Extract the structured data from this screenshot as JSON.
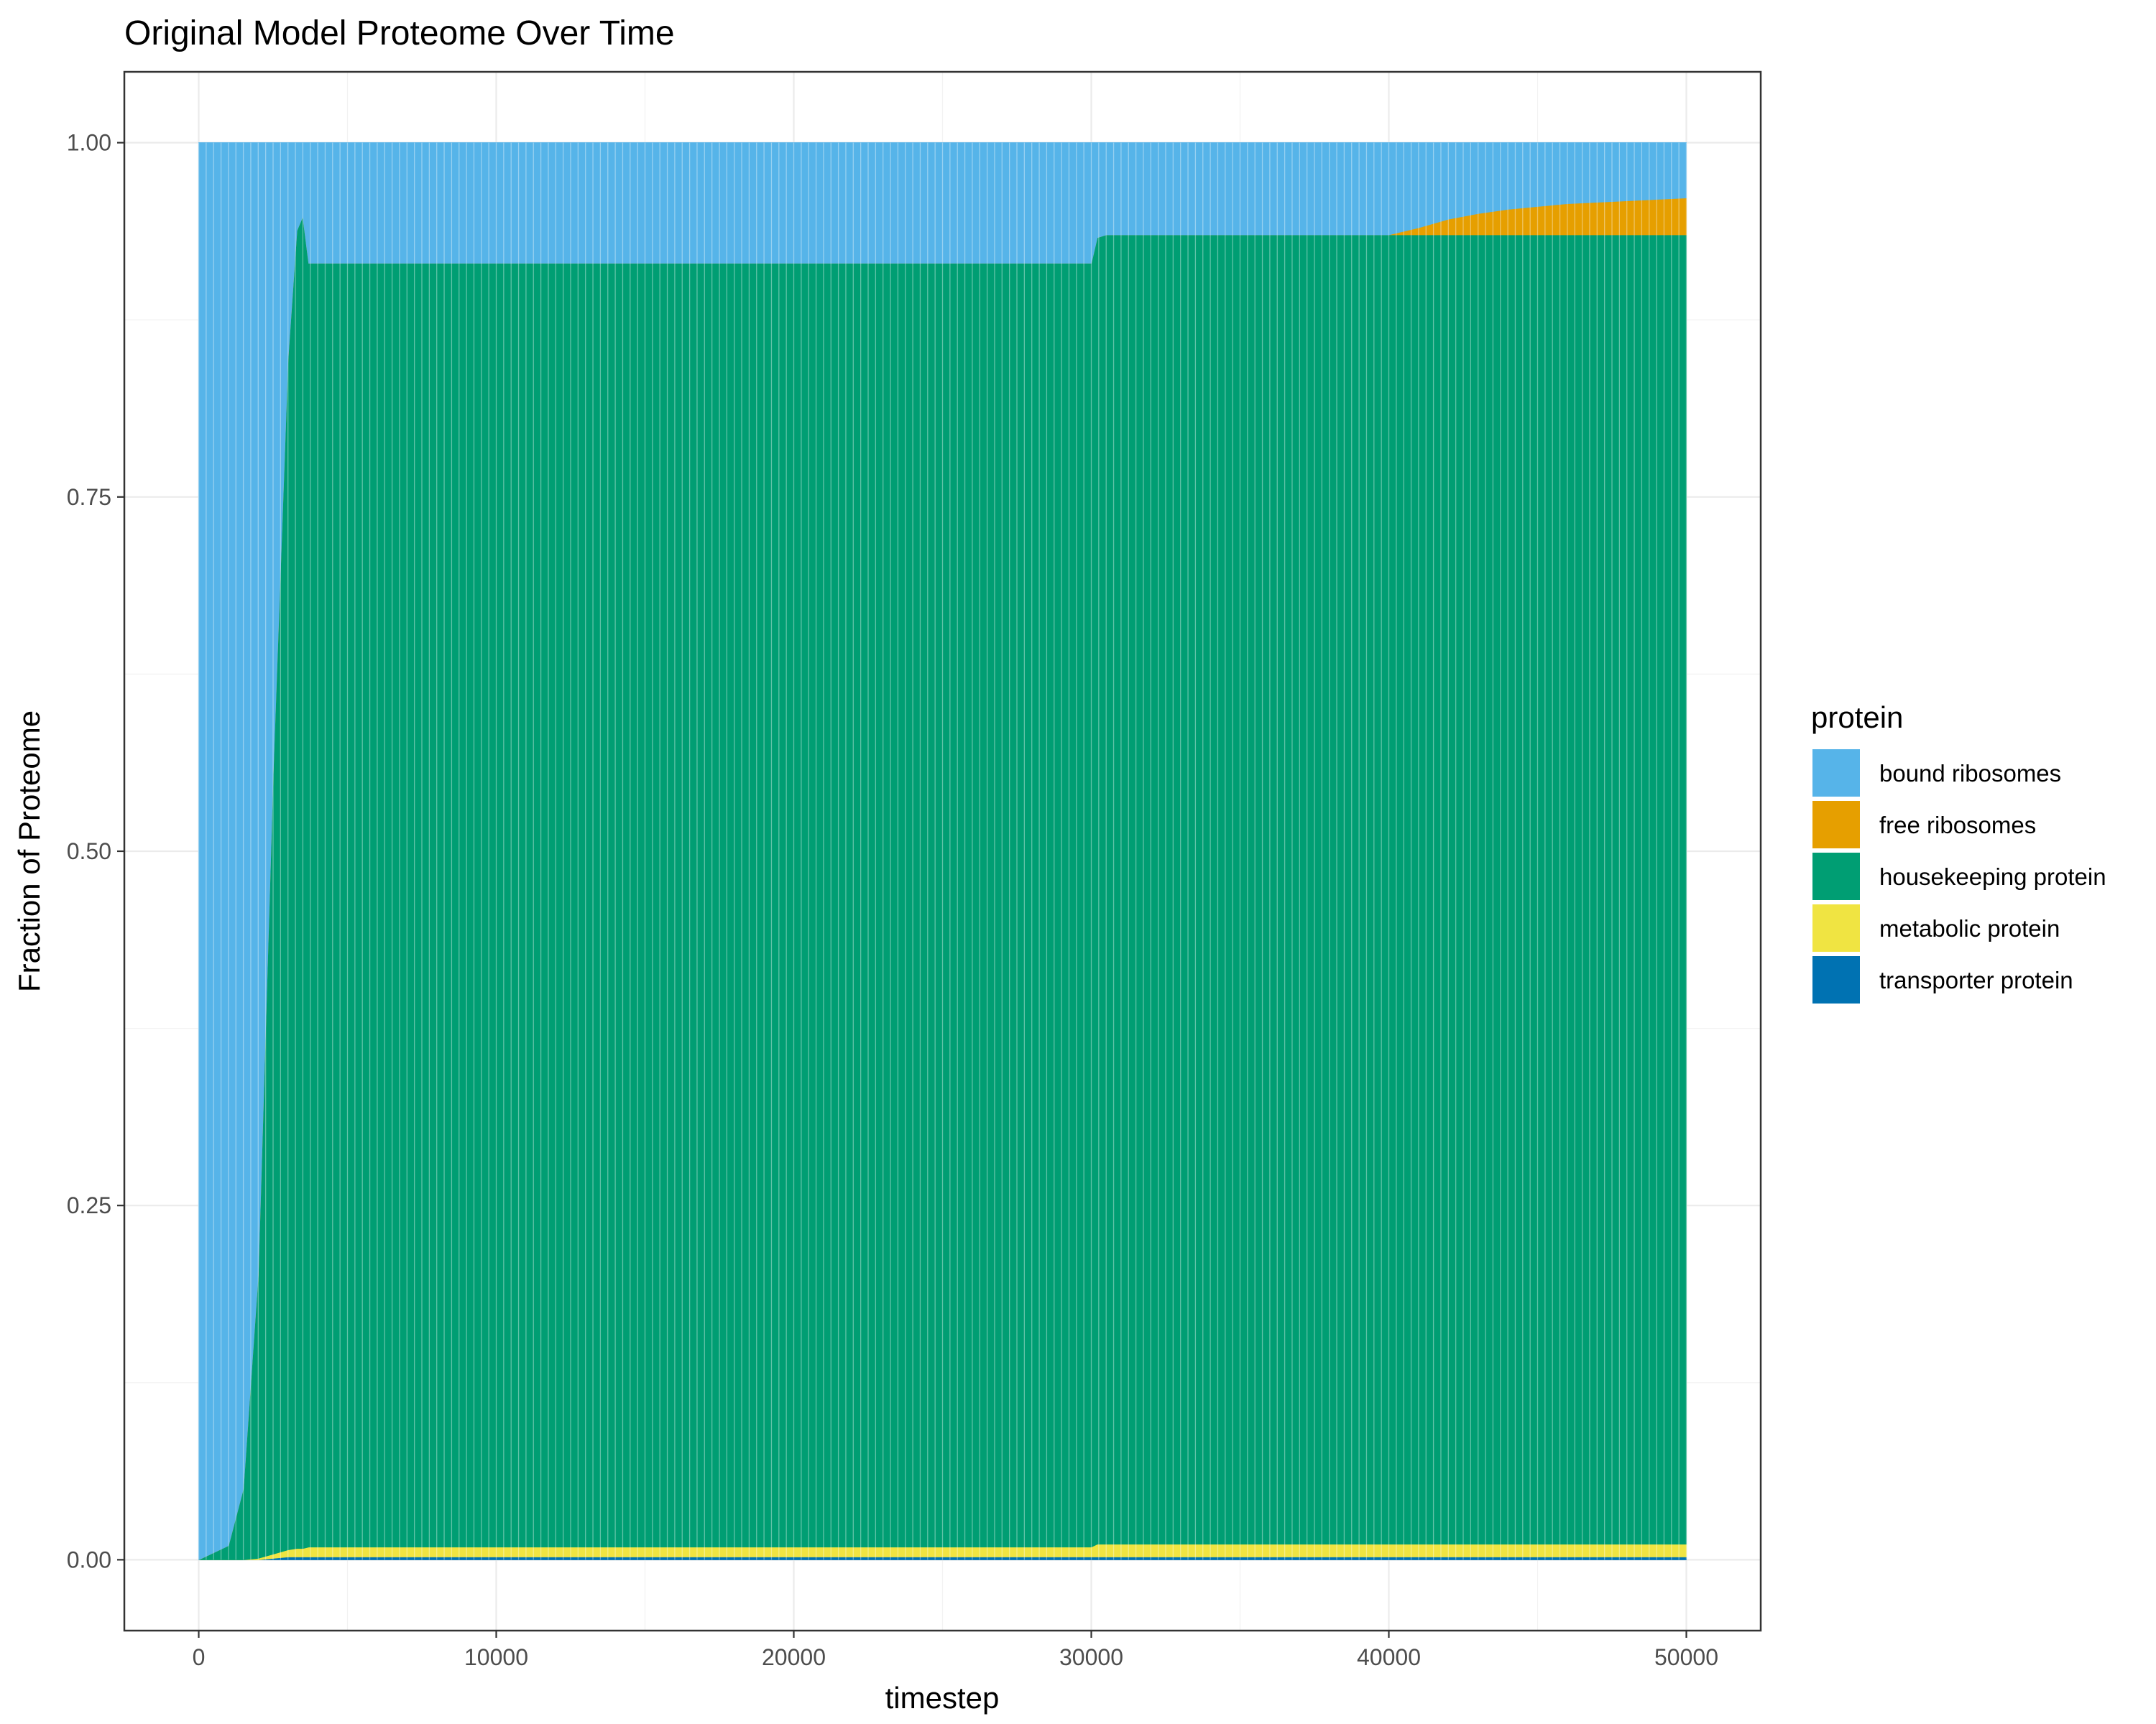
{
  "chart_data": {
    "type": "area",
    "stacked": true,
    "title": "Original Model Proteome Over Time",
    "xlabel": "timestep",
    "ylabel": "Fraction of Proteome",
    "xlim": [
      -2500,
      52500
    ],
    "ylim": [
      -0.05,
      1.05
    ],
    "x_ticks": [
      0,
      10000,
      20000,
      30000,
      40000,
      50000
    ],
    "x_tick_labels": [
      "0",
      "10000",
      "20000",
      "30000",
      "40000",
      "50000"
    ],
    "y_ticks": [
      0.0,
      0.25,
      0.5,
      0.75,
      1.0
    ],
    "y_tick_labels": [
      "0.00",
      "0.25",
      "0.50",
      "0.75",
      "1.00"
    ],
    "grid": true,
    "legend": {
      "title": "protein",
      "position": "right",
      "entries": [
        "bound ribosomes",
        "free ribosomes",
        "housekeeping protein",
        "metabolic protein",
        "transporter protein"
      ]
    },
    "stack_order_bottom_to_top": [
      "transporter protein",
      "metabolic protein",
      "housekeeping protein",
      "free ribosomes",
      "bound ribosomes"
    ],
    "x": [
      0,
      1000,
      1500,
      2000,
      2500,
      3000,
      3300,
      3500,
      3700,
      4000,
      10000,
      20000,
      30000,
      30200,
      30500,
      35000,
      40000,
      41000,
      42000,
      43000,
      44000,
      45000,
      46000,
      47000,
      48000,
      49000,
      50000
    ],
    "series": [
      {
        "name": "transporter protein",
        "color": "#0072B2",
        "values": [
          0,
          0,
          0,
          0,
          0.001,
          0.002,
          0.002,
          0.002,
          0.002,
          0.002,
          0.002,
          0.002,
          0.002,
          0.002,
          0.002,
          0.002,
          0.002,
          0.002,
          0.002,
          0.002,
          0.002,
          0.002,
          0.002,
          0.002,
          0.002,
          0.002,
          0.002
        ]
      },
      {
        "name": "metabolic protein",
        "color": "#F0E442",
        "values": [
          0,
          0,
          0,
          0.001,
          0.003,
          0.005,
          0.006,
          0.006,
          0.007,
          0.007,
          0.007,
          0.007,
          0.007,
          0.009,
          0.009,
          0.009,
          0.009,
          0.009,
          0.009,
          0.009,
          0.009,
          0.009,
          0.009,
          0.009,
          0.009,
          0.009,
          0.009
        ]
      },
      {
        "name": "housekeeping protein",
        "color": "#009E73",
        "values": [
          0,
          0.01,
          0.05,
          0.2,
          0.55,
          0.84,
          0.93,
          0.94,
          0.906,
          0.906,
          0.906,
          0.906,
          0.906,
          0.922,
          0.924,
          0.924,
          0.924,
          0.924,
          0.924,
          0.924,
          0.924,
          0.924,
          0.924,
          0.924,
          0.924,
          0.924,
          0.924
        ]
      },
      {
        "name": "free ribosomes",
        "color": "#E69F00",
        "values": [
          0,
          0,
          0,
          0,
          0,
          0,
          0,
          0,
          0,
          0,
          0,
          0,
          0,
          0,
          0,
          0,
          0,
          0.005,
          0.011,
          0.015,
          0.018,
          0.02,
          0.022,
          0.023,
          0.024,
          0.025,
          0.026
        ]
      },
      {
        "name": "bound ribosomes",
        "color": "#56B4E9",
        "values": [
          1.0,
          0.99,
          0.95,
          0.799,
          0.446,
          0.153,
          0.062,
          0.052,
          0.085,
          0.085,
          0.085,
          0.085,
          0.085,
          0.067,
          0.065,
          0.065,
          0.065,
          0.06,
          0.054,
          0.05,
          0.047,
          0.045,
          0.043,
          0.042,
          0.041,
          0.04,
          0.039
        ]
      }
    ]
  },
  "colors": {
    "bound ribosomes": "#56B4E9",
    "free ribosomes": "#E69F00",
    "housekeeping protein": "#009E73",
    "metabolic protein": "#F0E442",
    "transporter protein": "#0072B2",
    "grid": "#ebebeb",
    "panel_border": "#333333"
  }
}
